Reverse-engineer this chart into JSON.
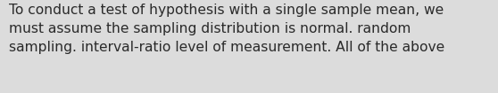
{
  "text": "To conduct a test of hypothesis with a single sample mean, we\nmust assume the sampling distribution is normal. random\nsampling. interval-ratio level of measurement. All of the above",
  "background_color": "#dcdcdc",
  "text_color": "#2a2a2a",
  "font_size": 11.2,
  "fig_width": 5.58,
  "fig_height": 1.05,
  "dpi": 100
}
